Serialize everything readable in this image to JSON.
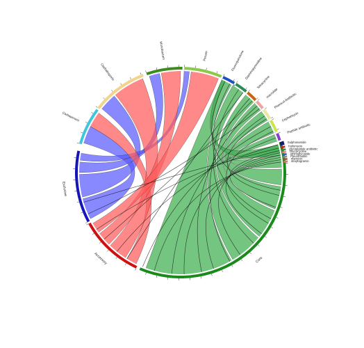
{
  "chart_data": {
    "type": "chord",
    "title": "",
    "groups": [
      {
        "name": "Core",
        "color": "#1a8a1a",
        "chord_color": "#3fae4f",
        "side": "bottom"
      },
      {
        "name": "Accessory",
        "color": "#cc1111",
        "chord_color": "#ff5c5c",
        "side": "bottom"
      },
      {
        "name": "Exclusive",
        "color": "#1515b8",
        "chord_color": "#5a5aff",
        "side": "bottom"
      }
    ],
    "sectors": [
      {
        "name": "Carbapenem",
        "color": "#3fc6d9"
      },
      {
        "name": "Cephalosporin",
        "color": "#f2d48a"
      },
      {
        "name": "Monobactam",
        "color": "#3c8c1e"
      },
      {
        "name": "Penam",
        "color": "#8dc84a"
      },
      {
        "name": "Fluoroquinolone",
        "color": "#1f4fc8"
      },
      {
        "name": "Diaminopyrimidine",
        "color": "#2e8b57"
      },
      {
        "name": "Tetracycline",
        "color": "#c86414"
      },
      {
        "name": "macrolide",
        "color": "#f2a0a0"
      },
      {
        "name": "Phenicol Antibiotic",
        "color": "#e8e89a"
      },
      {
        "name": "Cephamycin",
        "color": "#c8e84a"
      },
      {
        "name": "Peptide antibiotic",
        "color": "#8a3cc8"
      },
      {
        "name": "Sulphonamide",
        "color": "#1a1a6e"
      },
      {
        "name": "fosfomycin",
        "color": "#cc2020"
      },
      {
        "name": "glycopeptide antibiotic",
        "color": "#3a8a3a"
      },
      {
        "name": "Glycylcycline",
        "color": "#f08080"
      },
      {
        "name": "aminoglycoside",
        "color": "#3a5ab8"
      },
      {
        "name": "Pleuromutilin",
        "color": "#8a8a8a"
      },
      {
        "name": "rifamycin",
        "color": "#a05a28"
      },
      {
        "name": "streptogramin",
        "color": "#e07070"
      }
    ],
    "links": [
      {
        "from": "Exclusive",
        "to": "Carbapenem"
      },
      {
        "from": "Exclusive",
        "to": "Cephalosporin"
      },
      {
        "from": "Exclusive",
        "to": "Monobactam"
      },
      {
        "from": "Exclusive",
        "to": "Penam"
      },
      {
        "from": "Accessory",
        "to": "Carbapenem"
      },
      {
        "from": "Accessory",
        "to": "Cephalosporin"
      },
      {
        "from": "Accessory",
        "to": "Monobactam"
      },
      {
        "from": "Accessory",
        "to": "Penam"
      },
      {
        "from": "Core",
        "to": "Penam"
      },
      {
        "from": "Core",
        "to": "Fluoroquinolone"
      },
      {
        "from": "Core",
        "to": "Diaminopyrimidine"
      },
      {
        "from": "Core",
        "to": "Tetracycline"
      },
      {
        "from": "Core",
        "to": "macrolide"
      },
      {
        "from": "Core",
        "to": "Phenicol Antibiotic"
      },
      {
        "from": "Core",
        "to": "Cephamycin"
      },
      {
        "from": "Core",
        "to": "Peptide antibiotic"
      }
    ],
    "legend": "none",
    "grid": false
  }
}
